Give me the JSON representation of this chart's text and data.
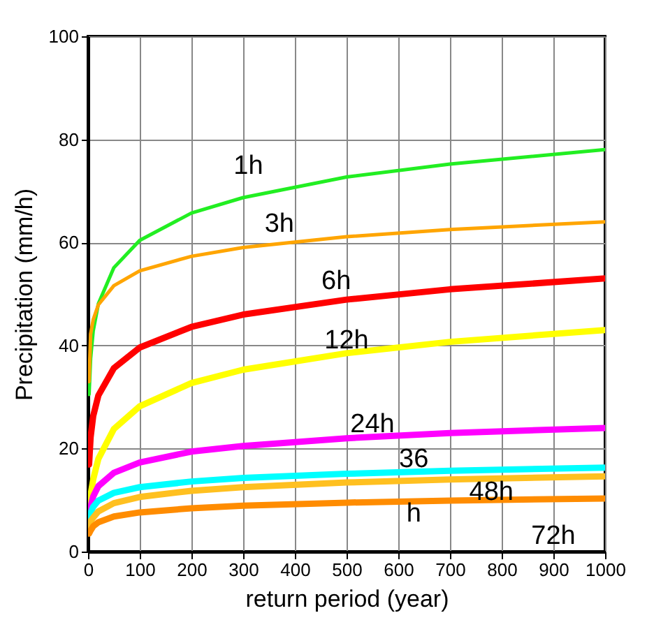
{
  "chart_data": {
    "type": "line",
    "xlabel": "return period (year)",
    "ylabel": "Precipitation (mm/h)",
    "x": [
      2,
      5,
      10,
      20,
      50,
      100,
      200,
      300,
      500,
      700,
      1000
    ],
    "xlim": [
      0,
      1000
    ],
    "xticks": [
      0,
      100,
      200,
      300,
      400,
      500,
      600,
      700,
      800,
      900,
      1000
    ],
    "ylim": [
      0,
      100
    ],
    "yticks": [
      0,
      20,
      40,
      60,
      80,
      100
    ],
    "grid": true,
    "series": [
      {
        "name": "1h",
        "color": "#22ee22",
        "values": [
          30.5,
          37.5,
          42.8,
          48.1,
          55.1,
          60.4,
          65.7,
          68.7,
          72.7,
          75.2,
          78
        ]
      },
      {
        "name": "3h",
        "color": "#ffa500",
        "values": [
          33,
          42.2,
          45,
          47.9,
          51.6,
          54.5,
          57.3,
          59,
          61.1,
          62.5,
          64
        ]
      },
      {
        "name": "6h",
        "color": "#ff0000",
        "values": [
          16.9,
          22.2,
          26.3,
          30.3,
          35.6,
          39.6,
          43.6,
          46,
          48.9,
          50.9,
          53
        ]
      },
      {
        "name": "12h",
        "color": "#ffff00",
        "values": [
          9,
          11,
          14,
          18,
          23.8,
          28.2,
          32.7,
          35.3,
          38.5,
          40.7,
          43
        ]
      },
      {
        "name": "24h",
        "color": "#ff00ff",
        "values": [
          7.5,
          8.7,
          10.7,
          12.7,
          15.3,
          17.3,
          19.4,
          20.5,
          22,
          23,
          24
        ]
      },
      {
        "name": "36",
        "color": "#00ffff",
        "values": [
          6,
          7.5,
          8.7,
          9.9,
          11.4,
          12.5,
          13.6,
          14.3,
          15.1,
          15.7,
          16.3
        ]
      },
      {
        "name": "48h",
        "color": "#ffc020",
        "values": [
          5,
          5.9,
          6.6,
          7.8,
          9.4,
          10.6,
          11.8,
          12.5,
          13.4,
          14,
          14.6
        ]
      },
      {
        "name": "72h",
        "color": "#ff8c00",
        "values": [
          3.5,
          4.1,
          4.9,
          5.7,
          6.8,
          7.6,
          8.4,
          8.9,
          9.5,
          9.9,
          10.3
        ]
      }
    ],
    "annotations": [
      "h"
    ]
  }
}
